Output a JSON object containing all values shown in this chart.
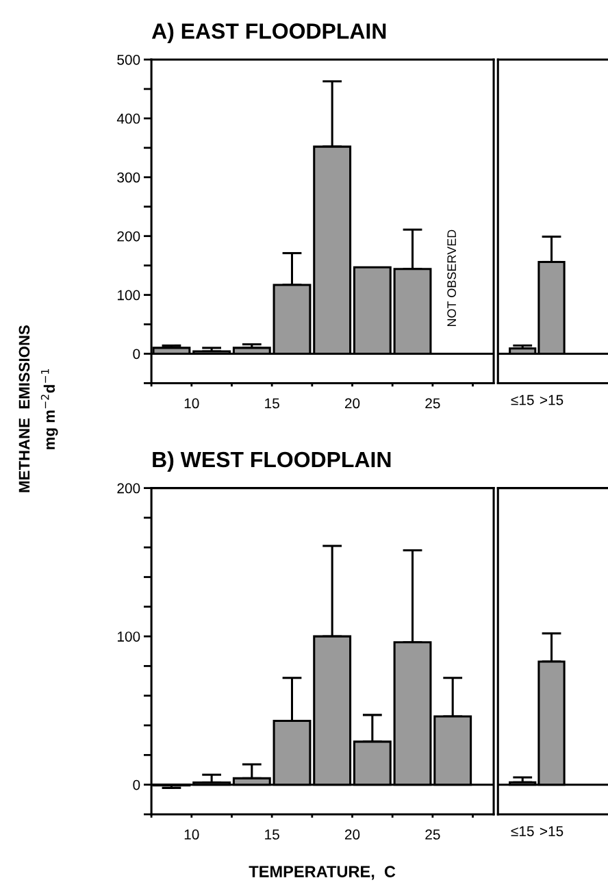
{
  "chart_data": [
    {
      "type": "bar",
      "title": "A) EAST FLOODPLAIN",
      "ylabel": "METHANE  EMISSIONS\nmg m$^{−2}$d$^{−1}$",
      "x": [
        8.75,
        11.25,
        13.75,
        16.25,
        18.75,
        21.25,
        23.75
      ],
      "values": [
        10,
        4,
        10,
        117,
        352,
        147,
        144
      ],
      "errors": [
        [
          10,
          14
        ],
        [
          4,
          10
        ],
        [
          10,
          16
        ],
        [
          117,
          171
        ],
        [
          352,
          463
        ],
        null,
        [
          144,
          211
        ]
      ],
      "color": "#9a9a9a",
      "xlim": [
        7.5,
        28.8
      ],
      "xticks": [
        {
          "value": 7.5,
          "label": null
        },
        10,
        {
          "value": 12.5,
          "label": null
        },
        15,
        {
          "value": 17.5,
          "label": null
        },
        20,
        {
          "value": 22.5,
          "label": null
        },
        25,
        {
          "value": 27.5,
          "label": null
        }
      ],
      "ylim": [
        -50,
        500
      ],
      "yticks": [
        {
          "value": -50,
          "label": null
        },
        0,
        {
          "value": 50,
          "label": null
        },
        100,
        {
          "value": 150,
          "label": null
        },
        200,
        {
          "value": 250,
          "label": null
        },
        300,
        {
          "value": 350,
          "label": null
        },
        400,
        {
          "value": 450,
          "label": null
        },
        500
      ],
      "ref_lines": [
        {
          "axis": "y",
          "value": 0
        }
      ],
      "annotations": [
        {
          "text": "NOT OBSERVED",
          "x": 26.25,
          "y": 0
        }
      ]
    },
    {
      "type": "bar",
      "categories": [
        "≤15",
        ">15"
      ],
      "values": [
        9,
        156
      ],
      "errors": [
        [
          9,
          14
        ],
        [
          156,
          199
        ]
      ],
      "color": "#9a9a9a",
      "ylim": [
        -50,
        500
      ],
      "tick_labels": "x",
      "ref_lines": [
        {
          "axis": "y",
          "value": 0
        }
      ]
    },
    {
      "type": "bar",
      "title": "B) WEST FLOODPLAIN",
      "xlabel": "TEMPERATURE,  C",
      "x": [
        8.75,
        11.25,
        13.75,
        16.25,
        18.75,
        21.25,
        23.75,
        26.25
      ],
      "values": [
        -0.5,
        1.5,
        4.3,
        43,
        100,
        29,
        96,
        46
      ],
      "errors": [
        [
          -2.2,
          -0.5
        ],
        [
          1.5,
          6.7
        ],
        [
          4.3,
          13.7
        ],
        [
          43,
          72
        ],
        [
          100,
          161
        ],
        [
          29,
          47
        ],
        [
          96,
          158
        ],
        [
          46,
          72
        ]
      ],
      "color": "#9a9a9a",
      "xlim": [
        7.5,
        28.8
      ],
      "xticks": [
        {
          "value": 7.5,
          "label": null
        },
        10,
        {
          "value": 12.5,
          "label": null
        },
        15,
        {
          "value": 17.5,
          "label": null
        },
        20,
        {
          "value": 22.5,
          "label": null
        },
        25,
        {
          "value": 27.5,
          "label": null
        }
      ],
      "ylim": [
        -20,
        200
      ],
      "yticks": [
        {
          "value": -20,
          "label": null
        },
        0,
        {
          "value": 20,
          "label": null
        },
        {
          "value": 40,
          "label": null
        },
        {
          "value": 60,
          "label": null
        },
        {
          "value": 80,
          "label": null
        },
        100,
        {
          "value": 120,
          "label": null
        },
        {
          "value": 140,
          "label": null
        },
        {
          "value": 160,
          "label": null
        },
        {
          "value": 180,
          "label": null
        },
        200
      ],
      "ref_lines": [
        {
          "axis": "y",
          "value": 0
        }
      ]
    },
    {
      "type": "bar",
      "categories": [
        "≤15",
        ">15"
      ],
      "values": [
        1.6,
        83
      ],
      "errors": [
        [
          1.6,
          4.9
        ],
        [
          83,
          102
        ]
      ],
      "color": "#9a9a9a",
      "ylim": [
        -20,
        200
      ],
      "tick_labels": "x",
      "ref_lines": [
        {
          "axis": "y",
          "value": 0
        }
      ]
    }
  ]
}
